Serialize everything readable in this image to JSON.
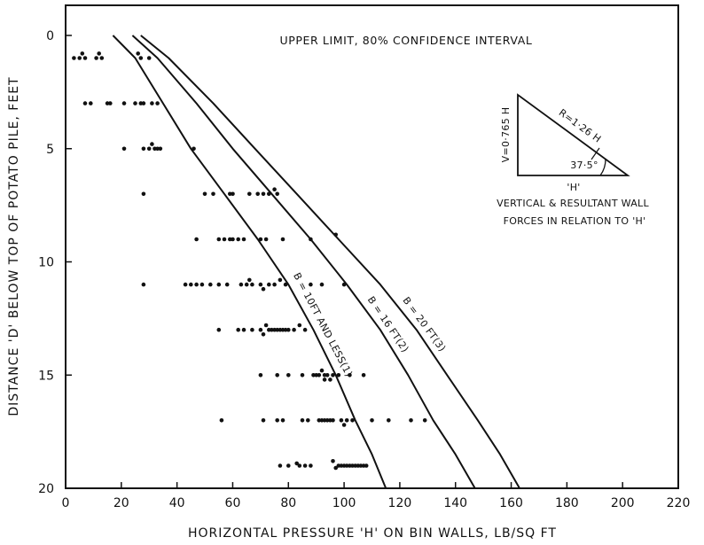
{
  "chart_data": {
    "type": "scatter",
    "xlabel": "HORIZONTAL PRESSURE 'H' ON BIN WALLS, LB/SQ FT",
    "ylabel": "DISTANCE 'D' BELOW TOP OF POTATO PILE, FEET",
    "xlim": [
      0,
      220
    ],
    "ylim": [
      0,
      20
    ],
    "y_inverted": true,
    "x_ticks": [
      0,
      20,
      40,
      60,
      80,
      100,
      120,
      140,
      160,
      180,
      200,
      220
    ],
    "y_ticks": [
      0,
      5,
      10,
      15,
      20
    ],
    "grid": false,
    "annotation_title": "UPPER LIMIT, 80% CONFIDENCE INTERVAL",
    "inset": {
      "label_r": "R=1·26 H",
      "label_v": "V=0·765 H",
      "label_angle": "37·5°",
      "label_h": "'H'",
      "caption_line1": "VERTICAL & RESULTANT WALL",
      "caption_line2": "FORCES IN RELATION TO 'H'"
    },
    "curves": [
      {
        "label": "B = 10FT AND LESS(1)",
        "points": [
          [
            17,
            0
          ],
          [
            25,
            1
          ],
          [
            35,
            3
          ],
          [
            45,
            5
          ],
          [
            57,
            7
          ],
          [
            69,
            9
          ],
          [
            80,
            11
          ],
          [
            89,
            13
          ],
          [
            97,
            15
          ],
          [
            104,
            17
          ],
          [
            110,
            18.5
          ],
          [
            115,
            20
          ]
        ]
      },
      {
        "label": "B = 16 FT(2)",
        "points": [
          [
            24,
            0
          ],
          [
            33,
            1
          ],
          [
            47,
            3
          ],
          [
            60,
            5
          ],
          [
            74,
            7
          ],
          [
            88,
            9
          ],
          [
            101,
            11
          ],
          [
            113,
            13
          ],
          [
            123,
            15
          ],
          [
            132,
            17
          ],
          [
            140,
            18.5
          ],
          [
            147,
            20
          ]
        ]
      },
      {
        "label": "B = 20 FT(3)",
        "points": [
          [
            27,
            0
          ],
          [
            37,
            1
          ],
          [
            53,
            3
          ],
          [
            68,
            5
          ],
          [
            83,
            7
          ],
          [
            98,
            9
          ],
          [
            113,
            11
          ],
          [
            126,
            13
          ],
          [
            137,
            15
          ],
          [
            148,
            17
          ],
          [
            156,
            18.5
          ],
          [
            163,
            20
          ]
        ]
      }
    ],
    "series": [
      {
        "points": [
          [
            3,
            1
          ],
          [
            5,
            1
          ],
          [
            6,
            0.8
          ],
          [
            7,
            1
          ],
          [
            11,
            1
          ],
          [
            12,
            0.8
          ],
          [
            13,
            1
          ],
          [
            26,
            0.8
          ],
          [
            27,
            1
          ],
          [
            30,
            1
          ],
          [
            7,
            3
          ],
          [
            9,
            3
          ],
          [
            15,
            3
          ],
          [
            16,
            3
          ],
          [
            21,
            3
          ],
          [
            25,
            3
          ],
          [
            27,
            3
          ],
          [
            28,
            3
          ],
          [
            31,
            3
          ],
          [
            33,
            3
          ],
          [
            21,
            5
          ],
          [
            28,
            5
          ],
          [
            30,
            5
          ],
          [
            31,
            4.8
          ],
          [
            32,
            5
          ],
          [
            33,
            5
          ],
          [
            34,
            5
          ],
          [
            46,
            5
          ],
          [
            28,
            7
          ],
          [
            50,
            7
          ],
          [
            53,
            7
          ],
          [
            59,
            7
          ],
          [
            60,
            7
          ],
          [
            66,
            7
          ],
          [
            69,
            7
          ],
          [
            71,
            7
          ],
          [
            73,
            7
          ],
          [
            75,
            6.8
          ],
          [
            76,
            7
          ],
          [
            47,
            9
          ],
          [
            55,
            9
          ],
          [
            57,
            9
          ],
          [
            59,
            9
          ],
          [
            60,
            9
          ],
          [
            62,
            9
          ],
          [
            64,
            9
          ],
          [
            70,
            9
          ],
          [
            72,
            9
          ],
          [
            78,
            9
          ],
          [
            88,
            9
          ],
          [
            97,
            8.8
          ],
          [
            28,
            11
          ],
          [
            43,
            11
          ],
          [
            45,
            11
          ],
          [
            47,
            11
          ],
          [
            49,
            11
          ],
          [
            52,
            11
          ],
          [
            55,
            11
          ],
          [
            58,
            11
          ],
          [
            63,
            11
          ],
          [
            65,
            11
          ],
          [
            66,
            10.8
          ],
          [
            67,
            11
          ],
          [
            70,
            11
          ],
          [
            71,
            11.2
          ],
          [
            73,
            11
          ],
          [
            75,
            11
          ],
          [
            77,
            10.8
          ],
          [
            79,
            11
          ],
          [
            88,
            11
          ],
          [
            92,
            11
          ],
          [
            100,
            11
          ],
          [
            55,
            13
          ],
          [
            62,
            13
          ],
          [
            64,
            13
          ],
          [
            67,
            13
          ],
          [
            70,
            13
          ],
          [
            71,
            13.2
          ],
          [
            72,
            12.8
          ],
          [
            73,
            13
          ],
          [
            74,
            13
          ],
          [
            75,
            13
          ],
          [
            76,
            13
          ],
          [
            77,
            13
          ],
          [
            78,
            13
          ],
          [
            79,
            13
          ],
          [
            80,
            13
          ],
          [
            82,
            13
          ],
          [
            84,
            12.8
          ],
          [
            86,
            13
          ],
          [
            70,
            15
          ],
          [
            76,
            15
          ],
          [
            80,
            15
          ],
          [
            85,
            15
          ],
          [
            89,
            15
          ],
          [
            90,
            15
          ],
          [
            91,
            15
          ],
          [
            92,
            14.8
          ],
          [
            93,
            15
          ],
          [
            93,
            15.2
          ],
          [
            94,
            15
          ],
          [
            95,
            15.2
          ],
          [
            96,
            15
          ],
          [
            98,
            15
          ],
          [
            102,
            15
          ],
          [
            107,
            15
          ],
          [
            56,
            17
          ],
          [
            71,
            17
          ],
          [
            76,
            17
          ],
          [
            78,
            17
          ],
          [
            85,
            17
          ],
          [
            87,
            17
          ],
          [
            91,
            17
          ],
          [
            92,
            17
          ],
          [
            93,
            17
          ],
          [
            94,
            17
          ],
          [
            95,
            17
          ],
          [
            96,
            17
          ],
          [
            99,
            17
          ],
          [
            100,
            17.2
          ],
          [
            101,
            17
          ],
          [
            103,
            17
          ],
          [
            110,
            17
          ],
          [
            116,
            17
          ],
          [
            124,
            17
          ],
          [
            129,
            17
          ],
          [
            77,
            19
          ],
          [
            80,
            19
          ],
          [
            83,
            18.9
          ],
          [
            84,
            19
          ],
          [
            86,
            19
          ],
          [
            88,
            19
          ],
          [
            96,
            18.8
          ],
          [
            97,
            19.1
          ],
          [
            98,
            19
          ],
          [
            99,
            19
          ],
          [
            100,
            19
          ],
          [
            101,
            19
          ],
          [
            102,
            19
          ],
          [
            103,
            19
          ],
          [
            104,
            19
          ],
          [
            105,
            19
          ],
          [
            106,
            19
          ],
          [
            107,
            19
          ],
          [
            108,
            19
          ]
        ]
      }
    ]
  }
}
